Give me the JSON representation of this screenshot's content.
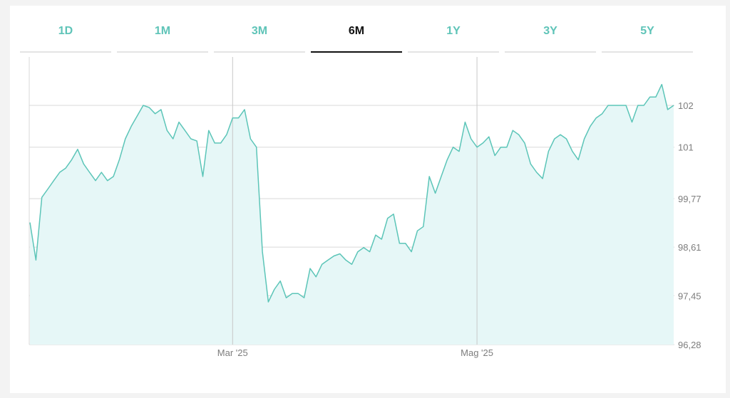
{
  "tabs": [
    {
      "label": "1D",
      "active": false
    },
    {
      "label": "1M",
      "active": false
    },
    {
      "label": "3M",
      "active": false
    },
    {
      "label": "6M",
      "active": true
    },
    {
      "label": "1Y",
      "active": false
    },
    {
      "label": "3Y",
      "active": false
    },
    {
      "label": "5Y",
      "active": false
    }
  ],
  "colors": {
    "line": "#5cc5b8",
    "fill": "#e6f7f7",
    "tab_inactive": "#5fc4b8",
    "tab_active": "#111111",
    "grid": "#d9d9d9",
    "tick_label": "#7d7d7d"
  },
  "chart_data": {
    "type": "area",
    "title": "",
    "xlabel": "",
    "ylabel": "",
    "ylim": [
      96.28,
      103.0
    ],
    "y_ticks": [
      {
        "value": 102,
        "label": "102"
      },
      {
        "value": 101,
        "label": "101"
      },
      {
        "value": 99.77,
        "label": "99,77"
      },
      {
        "value": 98.61,
        "label": "98,61"
      },
      {
        "value": 97.45,
        "label": "97,45"
      },
      {
        "value": 96.28,
        "label": "96,28"
      }
    ],
    "x_ticks": [
      {
        "index": 34,
        "label": "Mar '25"
      },
      {
        "index": 75,
        "label": "Mag '25"
      }
    ],
    "grid": true,
    "series": [
      {
        "values": [
          99.2,
          98.3,
          99.8,
          100.0,
          100.2,
          100.4,
          100.5,
          100.7,
          100.95,
          100.6,
          100.4,
          100.2,
          100.4,
          100.2,
          100.3,
          100.7,
          101.2,
          101.5,
          101.75,
          102.0,
          101.95,
          101.8,
          101.9,
          101.4,
          101.2,
          101.6,
          101.4,
          101.2,
          101.15,
          100.3,
          101.4,
          101.1,
          101.1,
          101.3,
          101.7,
          101.7,
          101.9,
          101.2,
          101.0,
          98.5,
          97.3,
          97.6,
          97.8,
          97.4,
          97.5,
          97.5,
          97.4,
          98.1,
          97.9,
          98.2,
          98.3,
          98.4,
          98.45,
          98.3,
          98.2,
          98.5,
          98.6,
          98.5,
          98.9,
          98.8,
          99.3,
          99.4,
          98.7,
          98.7,
          98.5,
          99.0,
          99.1,
          100.3,
          99.9,
          100.3,
          100.7,
          101.0,
          100.9,
          101.6,
          101.2,
          101.0,
          101.1,
          101.25,
          100.8,
          101.0,
          101.0,
          101.4,
          101.3,
          101.1,
          100.6,
          100.4,
          100.25,
          100.9,
          101.2,
          101.3,
          101.2,
          100.9,
          100.7,
          101.2,
          101.5,
          101.7,
          101.8,
          102.0,
          102.0,
          102.0,
          102.0,
          101.6,
          102.0,
          102.0,
          102.2,
          102.2,
          102.5,
          101.9,
          102.0
        ]
      }
    ]
  }
}
